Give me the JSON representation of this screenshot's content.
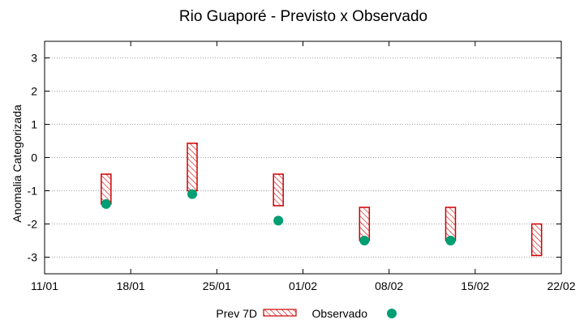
{
  "chart_data": {
    "type": "range-scatter",
    "title": "Rio Guaporé - Previsto x Observado",
    "xlabel": "",
    "ylabel": "Anomalia Categorizada",
    "ylim": [
      -3.5,
      3.5
    ],
    "yticks": [
      -3,
      -2,
      -1,
      0,
      1,
      2,
      3
    ],
    "xlim": [
      "2024-01-11",
      "2024-02-22"
    ],
    "xticks": [
      {
        "date": "2024-01-11",
        "label": "11/01"
      },
      {
        "date": "2024-01-18",
        "label": "18/01"
      },
      {
        "date": "2024-01-25",
        "label": "25/01"
      },
      {
        "date": "2024-02-01",
        "label": "01/02"
      },
      {
        "date": "2024-02-08",
        "label": "08/02"
      },
      {
        "date": "2024-02-15",
        "label": "15/02"
      },
      {
        "date": "2024-02-22",
        "label": "22/02"
      }
    ],
    "grid": "horizontal-dotted",
    "legend_placement": "bottom",
    "series": [
      {
        "name": "Prev 7D",
        "style": "hatched-range-bar",
        "color": "#cc0000",
        "ranges": [
          {
            "x": "2024-01-16",
            "low": -1.4,
            "high": -0.5
          },
          {
            "x": "2024-01-23",
            "low": -1.0,
            "high": 0.43
          },
          {
            "x": "2024-01-30",
            "low": -1.45,
            "high": -0.5
          },
          {
            "x": "2024-02-06",
            "low": -2.5,
            "high": -1.5
          },
          {
            "x": "2024-02-13",
            "low": -2.5,
            "high": -1.5
          },
          {
            "x": "2024-02-20",
            "low": -2.95,
            "high": -2.0
          }
        ]
      },
      {
        "name": "Observado",
        "style": "point",
        "color": "#009e73",
        "points": [
          {
            "x": "2024-01-16",
            "y": -1.4
          },
          {
            "x": "2024-01-23",
            "y": -1.1
          },
          {
            "x": "2024-01-30",
            "y": -1.9
          },
          {
            "x": "2024-02-06",
            "y": -2.5
          },
          {
            "x": "2024-02-13",
            "y": -2.5
          }
        ]
      }
    ]
  }
}
